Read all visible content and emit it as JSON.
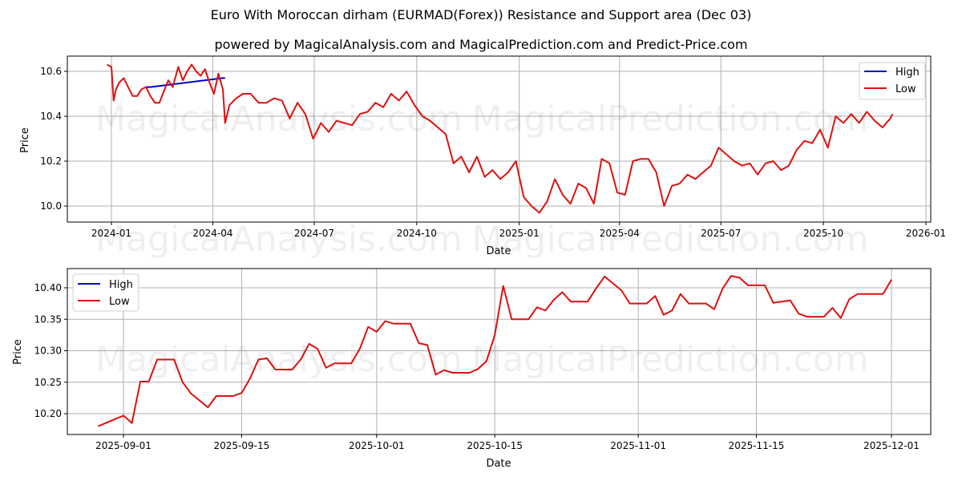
{
  "header": {
    "title": "Euro With Moroccan dirham (EURMAD(Forex)) Resistance and Support area (Dec 03)",
    "subtitle": "powered by MagicalAnalysis.com and MagicalPrediction.com and Predict-Price.com"
  },
  "watermarks": [
    "MagicalAnalysis.com",
    "MagicalPrediction.com"
  ],
  "colors": {
    "high": "#0000cc",
    "low": "#dd1111",
    "grid": "#b0b0b0"
  },
  "chart_data": [
    {
      "type": "line",
      "title": "Euro With Moroccan dirham (EURMAD(Forex)) Resistance and Support area (Dec 03)",
      "xlabel": "Date",
      "ylabel": "Price",
      "x_ticks": [
        "2024-01",
        "2024-04",
        "2024-07",
        "2024-10",
        "2025-01",
        "2025-04",
        "2025-07",
        "2025-10",
        "2026-01"
      ],
      "y_ticks": [
        "10.0",
        "10.2",
        "10.4",
        "10.6"
      ],
      "ylim": [
        9.93,
        10.67
      ],
      "grid": true,
      "legend": {
        "position": "upper right",
        "entries": [
          "High",
          "Low"
        ]
      },
      "series": [
        {
          "name": "Low",
          "color": "#dd1111",
          "x": [
            "2023-12-28",
            "2024-01-01",
            "2024-01-03",
            "2024-01-05",
            "2024-01-08",
            "2024-01-12",
            "2024-01-16",
            "2024-01-20",
            "2024-01-24",
            "2024-01-28",
            "2024-02-01",
            "2024-02-05",
            "2024-02-09",
            "2024-02-13",
            "2024-02-17",
            "2024-02-21",
            "2024-02-25",
            "2024-03-01",
            "2024-03-05",
            "2024-03-09",
            "2024-03-13",
            "2024-03-17",
            "2024-03-21",
            "2024-03-25",
            "2024-03-29",
            "2024-04-02",
            "2024-04-06",
            "2024-04-10",
            "2024-04-12",
            "2024-04-16",
            "2024-04-22",
            "2024-04-28",
            "2024-05-05",
            "2024-05-12",
            "2024-05-19",
            "2024-05-26",
            "2024-06-02",
            "2024-06-09",
            "2024-06-16",
            "2024-06-23",
            "2024-06-30",
            "2024-07-07",
            "2024-07-14",
            "2024-07-21",
            "2024-07-28",
            "2024-08-04",
            "2024-08-11",
            "2024-08-18",
            "2024-08-25",
            "2024-09-01",
            "2024-09-08",
            "2024-09-15",
            "2024-09-22",
            "2024-09-29",
            "2024-10-06",
            "2024-10-13",
            "2024-10-20",
            "2024-10-27",
            "2024-11-03",
            "2024-11-10",
            "2024-11-17",
            "2024-11-24",
            "2024-12-01",
            "2024-12-08",
            "2024-12-15",
            "2024-12-22",
            "2024-12-29",
            "2025-01-05",
            "2025-01-12",
            "2025-01-19",
            "2025-01-26",
            "2025-02-02",
            "2025-02-09",
            "2025-02-16",
            "2025-02-23",
            "2025-03-02",
            "2025-03-09",
            "2025-03-16",
            "2025-03-23",
            "2025-03-30",
            "2025-04-06",
            "2025-04-13",
            "2025-04-20",
            "2025-04-27",
            "2025-05-04",
            "2025-05-11",
            "2025-05-18",
            "2025-05-25",
            "2025-06-01",
            "2025-06-08",
            "2025-06-15",
            "2025-06-22",
            "2025-06-29",
            "2025-07-06",
            "2025-07-13",
            "2025-07-20",
            "2025-07-27",
            "2025-08-03",
            "2025-08-10",
            "2025-08-17",
            "2025-08-24",
            "2025-08-31",
            "2025-09-07",
            "2025-09-14",
            "2025-09-21",
            "2025-09-28",
            "2025-10-05",
            "2025-10-12",
            "2025-10-19",
            "2025-10-26",
            "2025-11-02",
            "2025-11-09",
            "2025-11-16",
            "2025-11-23",
            "2025-11-30",
            "2025-12-02"
          ],
          "values": [
            10.63,
            10.62,
            10.47,
            10.52,
            10.55,
            10.57,
            10.53,
            10.49,
            10.49,
            10.52,
            10.53,
            10.49,
            10.46,
            10.46,
            10.51,
            10.56,
            10.53,
            10.62,
            10.56,
            10.6,
            10.63,
            10.6,
            10.58,
            10.61,
            10.55,
            10.5,
            10.59,
            10.52,
            10.37,
            10.45,
            10.48,
            10.5,
            10.5,
            10.46,
            10.46,
            10.48,
            10.47,
            10.39,
            10.46,
            10.41,
            10.3,
            10.37,
            10.33,
            10.38,
            10.37,
            10.36,
            10.41,
            10.42,
            10.46,
            10.44,
            10.5,
            10.47,
            10.51,
            10.45,
            10.4,
            10.38,
            10.35,
            10.32,
            10.19,
            10.22,
            10.15,
            10.22,
            10.13,
            10.16,
            10.12,
            10.15,
            10.2,
            10.04,
            10.0,
            9.97,
            10.02,
            10.12,
            10.05,
            10.01,
            10.1,
            10.08,
            10.01,
            10.21,
            10.19,
            10.06,
            10.05,
            10.2,
            10.21,
            10.21,
            10.15,
            10.0,
            10.09,
            10.1,
            10.14,
            10.12,
            10.15,
            10.18,
            10.26,
            10.23,
            10.2,
            10.18,
            10.19,
            10.14,
            10.19,
            10.2,
            10.16,
            10.18,
            10.25,
            10.29,
            10.28,
            10.34,
            10.26,
            10.4,
            10.37,
            10.41,
            10.37,
            10.42,
            10.38,
            10.35,
            10.39,
            10.41
          ]
        },
        {
          "name": "High",
          "color": "#0000cc",
          "note": "nearly identical to Low; visible only where diverging",
          "x": [
            "2024-02-01",
            "2024-02-05",
            "2024-04-10",
            "2024-04-12"
          ],
          "values": [
            10.53,
            10.53,
            10.57,
            10.57
          ]
        }
      ]
    },
    {
      "type": "line",
      "title": "",
      "xlabel": "Date",
      "ylabel": "Price",
      "x_ticks": [
        "2025-09-01",
        "2025-09-15",
        "2025-10-01",
        "2025-10-15",
        "2025-11-01",
        "2025-11-15",
        "2025-12-01"
      ],
      "y_ticks": [
        "10.20",
        "10.25",
        "10.30",
        "10.35",
        "10.40"
      ],
      "ylim": [
        10.167,
        10.43
      ],
      "grid": true,
      "legend": {
        "position": "upper left",
        "entries": [
          "High",
          "Low"
        ]
      },
      "series": [
        {
          "name": "Low",
          "color": "#dd1111",
          "x": [
            "2025-08-29",
            "2025-09-01",
            "2025-09-02",
            "2025-09-03",
            "2025-09-04",
            "2025-09-05",
            "2025-09-07",
            "2025-09-08",
            "2025-09-09",
            "2025-09-11",
            "2025-09-12",
            "2025-09-14",
            "2025-09-15",
            "2025-09-16",
            "2025-09-17",
            "2025-09-18",
            "2025-09-19",
            "2025-09-21",
            "2025-09-22",
            "2025-09-23",
            "2025-09-24",
            "2025-09-25",
            "2025-09-26",
            "2025-09-28",
            "2025-09-29",
            "2025-09-30",
            "2025-10-01",
            "2025-10-02",
            "2025-10-03",
            "2025-10-05",
            "2025-10-06",
            "2025-10-07",
            "2025-10-08",
            "2025-10-09",
            "2025-10-10",
            "2025-10-12",
            "2025-10-13",
            "2025-10-14",
            "2025-10-15",
            "2025-10-16",
            "2025-10-17",
            "2025-10-19",
            "2025-10-20",
            "2025-10-21",
            "2025-10-22",
            "2025-10-23",
            "2025-10-24",
            "2025-10-26",
            "2025-10-27",
            "2025-10-28",
            "2025-10-29",
            "2025-10-30",
            "2025-10-31",
            "2025-11-02",
            "2025-11-03",
            "2025-11-04",
            "2025-11-05",
            "2025-11-06",
            "2025-11-07",
            "2025-11-09",
            "2025-11-10",
            "2025-11-11",
            "2025-11-12",
            "2025-11-13",
            "2025-11-14",
            "2025-11-16",
            "2025-11-17",
            "2025-11-19",
            "2025-11-20",
            "2025-11-21",
            "2025-11-23",
            "2025-11-24",
            "2025-11-25",
            "2025-11-26",
            "2025-11-27",
            "2025-11-30",
            "2025-12-01"
          ],
          "values": [
            10.18,
            10.197,
            10.185,
            10.251,
            10.251,
            10.286,
            10.286,
            10.25,
            10.232,
            10.21,
            10.228,
            10.228,
            10.233,
            10.256,
            10.286,
            10.288,
            10.27,
            10.27,
            10.286,
            10.311,
            10.303,
            10.273,
            10.28,
            10.28,
            10.303,
            10.338,
            10.33,
            10.347,
            10.343,
            10.343,
            10.312,
            10.309,
            10.262,
            10.269,
            10.265,
            10.265,
            10.271,
            10.283,
            10.325,
            10.403,
            10.35,
            10.35,
            10.369,
            10.364,
            10.381,
            10.393,
            10.378,
            10.378,
            10.399,
            10.418,
            10.407,
            10.396,
            10.375,
            10.375,
            10.387,
            10.357,
            10.364,
            10.39,
            10.375,
            10.375,
            10.366,
            10.399,
            10.419,
            10.416,
            10.404,
            10.404,
            10.376,
            10.38,
            10.359,
            10.354,
            10.354,
            10.368,
            10.352,
            10.382,
            10.39,
            10.39,
            10.413
          ]
        },
        {
          "name": "High",
          "color": "#0000cc",
          "note": "overlaps Low series"
        }
      ]
    }
  ]
}
